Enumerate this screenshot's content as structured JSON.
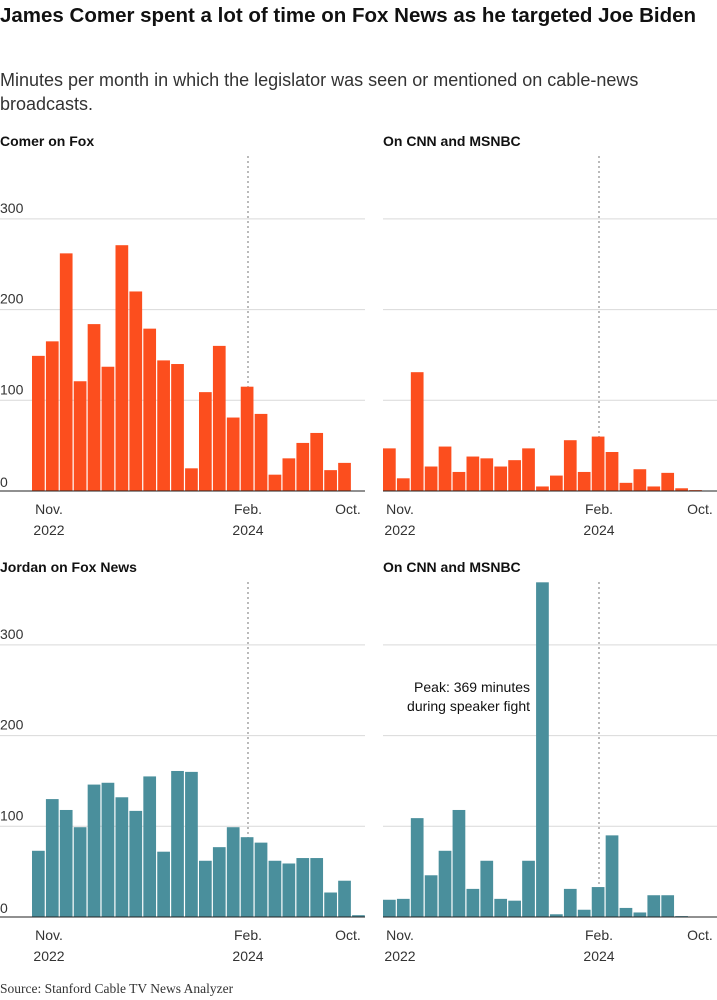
{
  "title": "James Comer spent a lot of time on Fox News as he targeted Joe Biden",
  "subtitle": "Minutes per month in which the legislator was seen or mentioned on cable-news broadcasts.",
  "source": "Source: Stanford Cable TV News Analyzer",
  "colors": {
    "comer": "#fc4e1e",
    "jordan": "#4a8f9c",
    "grid": "#d9d9d9",
    "marker": "#aaaaaa"
  },
  "chart_data": [
    {
      "type": "bar",
      "title": "Comer on Fox",
      "x_labels": [
        {
          "line1": "Nov.",
          "line2": "2022"
        },
        {
          "line1": "Feb.",
          "line2": "2024"
        },
        {
          "line1": "Oct.",
          "line2": ""
        }
      ],
      "y_ticks": [
        "300",
        "200",
        "100",
        "0"
      ],
      "ylim": [
        0,
        360
      ],
      "values": [
        149,
        165,
        262,
        121,
        184,
        137,
        271,
        220,
        179,
        144,
        140,
        25,
        109,
        160,
        81,
        115,
        85,
        18,
        36,
        53,
        64,
        23,
        31,
        0
      ],
      "color": "comer"
    },
    {
      "type": "bar",
      "title": "On CNN and MSNBC",
      "x_labels": [
        {
          "line1": "Nov.",
          "line2": "2022"
        },
        {
          "line1": "Feb.",
          "line2": "2024"
        },
        {
          "line1": "Oct.",
          "line2": ""
        }
      ],
      "y_ticks": [
        "300",
        "200",
        "100",
        "0"
      ],
      "ylim": [
        0,
        360
      ],
      "values": [
        47,
        14,
        131,
        27,
        49,
        21,
        38,
        36,
        27,
        34,
        47,
        5,
        17,
        56,
        21,
        60,
        43,
        9,
        24,
        5,
        20,
        3,
        1,
        0
      ],
      "color": "comer"
    },
    {
      "type": "bar",
      "title": "Jordan on Fox News",
      "x_labels": [
        {
          "line1": "Nov.",
          "line2": "2022"
        },
        {
          "line1": "Feb.",
          "line2": "2024"
        },
        {
          "line1": "Oct.",
          "line2": ""
        }
      ],
      "y_ticks": [
        "300",
        "200",
        "100",
        "0"
      ],
      "ylim": [
        0,
        360
      ],
      "values": [
        73,
        130,
        118,
        99,
        146,
        148,
        132,
        117,
        155,
        72,
        161,
        160,
        62,
        77,
        99,
        88,
        82,
        62,
        59,
        65,
        65,
        27,
        40,
        2
      ],
      "color": "jordan"
    },
    {
      "type": "bar",
      "title": "On CNN and MSNBC",
      "x_labels": [
        {
          "line1": "Nov.",
          "line2": "2022"
        },
        {
          "line1": "Feb.",
          "line2": "2024"
        },
        {
          "line1": "Oct.",
          "line2": ""
        }
      ],
      "y_ticks": [
        "300",
        "200",
        "100",
        "0"
      ],
      "ylim": [
        0,
        360
      ],
      "values": [
        19,
        20,
        109,
        46,
        73,
        118,
        31,
        62,
        20,
        18,
        62,
        369,
        3,
        31,
        8,
        33,
        90,
        10,
        5,
        24,
        24,
        1,
        0,
        0
      ],
      "color": "jordan",
      "annotation": {
        "line1": "Peak: 369 minutes",
        "line2": "during speaker fight"
      }
    }
  ]
}
